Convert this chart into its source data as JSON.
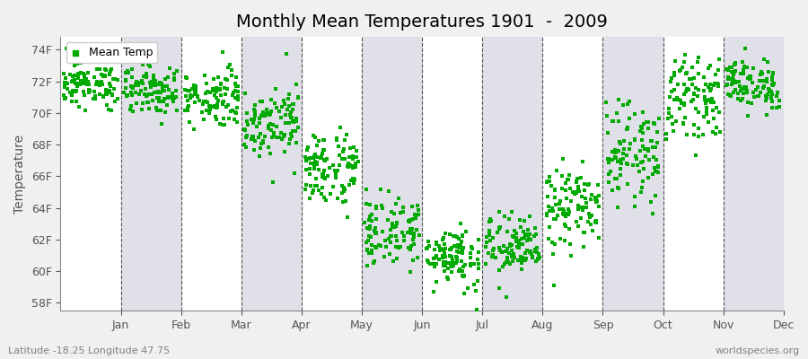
{
  "title": "Monthly Mean Temperatures 1901  -  2009",
  "ylabel": "Temperature",
  "xlabel_months": [
    "Jan",
    "Feb",
    "Mar",
    "Apr",
    "May",
    "Jun",
    "Jul",
    "Aug",
    "Sep",
    "Oct",
    "Nov",
    "Dec"
  ],
  "ytick_labels": [
    "58F",
    "60F",
    "62F",
    "64F",
    "66F",
    "68F",
    "70F",
    "72F",
    "74F"
  ],
  "ytick_values": [
    58,
    60,
    62,
    64,
    66,
    68,
    70,
    72,
    74
  ],
  "ylim": [
    57.5,
    74.8
  ],
  "dot_color": "#00aa00",
  "dot_size": 7,
  "background_color": "#f0f0f0",
  "plot_bg_color": "#ffffff",
  "stripe_color": "#e0e0e8",
  "grid_color": "#555555",
  "title_fontsize": 14,
  "axis_fontsize": 10,
  "tick_fontsize": 9,
  "legend_label": "Mean Temp",
  "footer_left": "Latitude -18.25 Longitude 47.75",
  "footer_right": "worldspecies.org",
  "n_years": 109,
  "monthly_means": [
    71.8,
    71.5,
    71.0,
    69.5,
    66.5,
    62.5,
    61.0,
    61.5,
    64.0,
    67.5,
    71.0,
    71.8
  ],
  "monthly_stds": [
    0.7,
    0.8,
    0.9,
    1.1,
    1.2,
    1.1,
    1.0,
    1.0,
    1.3,
    1.5,
    1.2,
    0.8
  ]
}
